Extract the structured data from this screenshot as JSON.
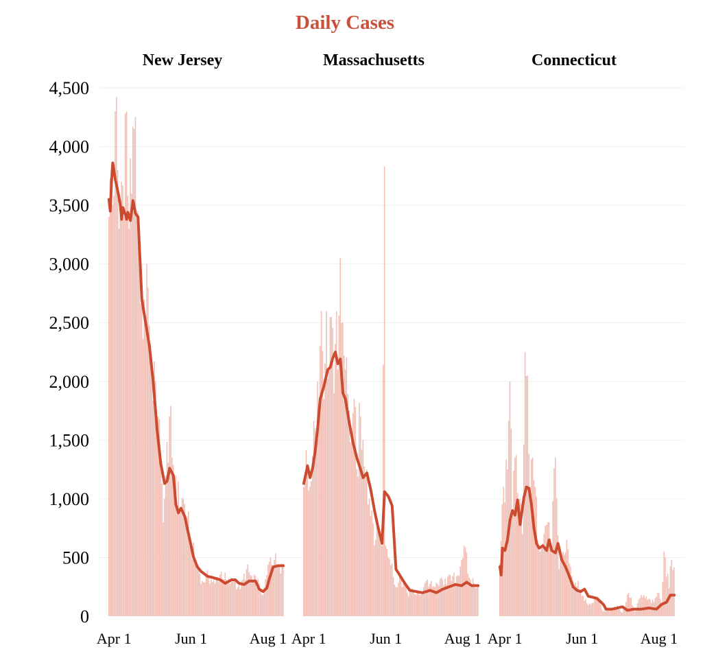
{
  "chart_data": {
    "type": "bar",
    "title": "Daily Cases",
    "colors": {
      "title": "#c9513a",
      "bars": "#f0bfb5",
      "line": "#cc4b30",
      "grid": "#efefef",
      "text": "#000000"
    },
    "ylim": [
      0,
      4500
    ],
    "yticks": [
      0,
      500,
      1000,
      1500,
      2000,
      2500,
      3000,
      3500,
      4000,
      4500
    ],
    "ytick_labels": [
      "0",
      "500",
      "1,000",
      "1,500",
      "2,000",
      "2,500",
      "3,000",
      "3,500",
      "4,000",
      "4,500"
    ],
    "date_range": [
      "2020-03-28",
      "2020-08-13"
    ],
    "xtick_dates": [
      "2020-04-01",
      "2020-06-01",
      "2020-08-01"
    ],
    "xtick_labels": [
      "Apr 1",
      "Jun 1",
      "Aug 1"
    ],
    "grid": "horizontal",
    "panels": [
      {
        "title": "New Jersey",
        "bar_keys": [
          [
            "2020-03-28",
            3400
          ],
          [
            "2020-03-31",
            3500
          ],
          [
            "2020-04-02",
            4300
          ],
          [
            "2020-04-04",
            3800
          ],
          [
            "2020-04-05",
            3300
          ],
          [
            "2020-04-07",
            3700
          ],
          [
            "2020-04-09",
            3400
          ],
          [
            "2020-04-10",
            4280
          ],
          [
            "2020-04-11",
            4300
          ],
          [
            "2020-04-13",
            3300
          ],
          [
            "2020-04-14",
            3900
          ],
          [
            "2020-04-15",
            3600
          ],
          [
            "2020-04-17",
            4150
          ],
          [
            "2020-04-19",
            3400
          ],
          [
            "2020-04-21",
            3200
          ],
          [
            "2020-04-23",
            2700
          ],
          [
            "2020-04-25",
            2700
          ],
          [
            "2020-04-27",
            3000
          ],
          [
            "2020-04-28",
            2800
          ],
          [
            "2020-05-01",
            2200
          ],
          [
            "2020-05-04",
            2000
          ],
          [
            "2020-05-06",
            1700
          ],
          [
            "2020-05-08",
            1350
          ],
          [
            "2020-05-10",
            800
          ],
          [
            "2020-05-12",
            1200
          ],
          [
            "2020-05-15",
            1700
          ],
          [
            "2020-05-17",
            1350
          ],
          [
            "2020-05-20",
            1200
          ],
          [
            "2020-05-23",
            900
          ],
          [
            "2020-05-26",
            1000
          ],
          [
            "2020-05-29",
            850
          ],
          [
            "2020-06-01",
            600
          ],
          [
            "2020-06-04",
            500
          ],
          [
            "2020-06-07",
            400
          ],
          [
            "2020-06-10",
            300
          ],
          [
            "2020-06-15",
            340
          ],
          [
            "2020-06-20",
            280
          ],
          [
            "2020-06-25",
            380
          ],
          [
            "2020-06-30",
            280
          ],
          [
            "2020-07-05",
            300
          ],
          [
            "2020-07-10",
            230
          ],
          [
            "2020-07-15",
            400
          ],
          [
            "2020-07-20",
            310
          ],
          [
            "2020-07-25",
            280
          ],
          [
            "2020-07-28",
            180
          ],
          [
            "2020-07-31",
            350
          ],
          [
            "2020-08-03",
            500
          ],
          [
            "2020-08-06",
            480
          ],
          [
            "2020-08-10",
            440
          ]
        ],
        "line_keys": [
          [
            "2020-03-28",
            3550
          ],
          [
            "2020-03-29",
            3450
          ],
          [
            "2020-03-30",
            3700
          ],
          [
            "2020-03-31",
            3860
          ],
          [
            "2020-04-02",
            3720
          ],
          [
            "2020-04-04",
            3620
          ],
          [
            "2020-04-06",
            3500
          ],
          [
            "2020-04-07",
            3380
          ],
          [
            "2020-04-08",
            3480
          ],
          [
            "2020-04-10",
            3420
          ],
          [
            "2020-04-11",
            3380
          ],
          [
            "2020-04-12",
            3440
          ],
          [
            "2020-04-14",
            3370
          ],
          [
            "2020-04-16",
            3540
          ],
          [
            "2020-04-18",
            3430
          ],
          [
            "2020-04-20",
            3400
          ],
          [
            "2020-04-23",
            2700
          ],
          [
            "2020-04-26",
            2500
          ],
          [
            "2020-04-29",
            2300
          ],
          [
            "2020-05-02",
            2000
          ],
          [
            "2020-05-05",
            1600
          ],
          [
            "2020-05-08",
            1300
          ],
          [
            "2020-05-11",
            1130
          ],
          [
            "2020-05-13",
            1150
          ],
          [
            "2020-05-15",
            1260
          ],
          [
            "2020-05-18",
            1200
          ],
          [
            "2020-05-20",
            950
          ],
          [
            "2020-05-22",
            880
          ],
          [
            "2020-05-24",
            920
          ],
          [
            "2020-05-27",
            850
          ],
          [
            "2020-05-30",
            700
          ],
          [
            "2020-06-03",
            500
          ],
          [
            "2020-06-06",
            420
          ],
          [
            "2020-06-09",
            380
          ],
          [
            "2020-06-14",
            340
          ],
          [
            "2020-06-18",
            330
          ],
          [
            "2020-06-24",
            310
          ],
          [
            "2020-06-28",
            280
          ],
          [
            "2020-07-03",
            310
          ],
          [
            "2020-07-06",
            310
          ],
          [
            "2020-07-09",
            280
          ],
          [
            "2020-07-13",
            270
          ],
          [
            "2020-07-17",
            300
          ],
          [
            "2020-07-22",
            300
          ],
          [
            "2020-07-25",
            230
          ],
          [
            "2020-07-28",
            210
          ],
          [
            "2020-07-31",
            240
          ],
          [
            "2020-08-02",
            320
          ],
          [
            "2020-08-05",
            420
          ],
          [
            "2020-08-09",
            430
          ]
        ]
      },
      {
        "title": "Massachusetts",
        "bar_keys": [
          [
            "2020-03-28",
            1100
          ],
          [
            "2020-03-31",
            1300
          ],
          [
            "2020-04-03",
            1150
          ],
          [
            "2020-04-06",
            1600
          ],
          [
            "2020-04-08",
            2000
          ],
          [
            "2020-04-10",
            2300
          ],
          [
            "2020-04-11",
            2600
          ],
          [
            "2020-04-13",
            1850
          ],
          [
            "2020-04-15",
            2600
          ],
          [
            "2020-04-17",
            2100
          ],
          [
            "2020-04-19",
            2550
          ],
          [
            "2020-04-21",
            1900
          ],
          [
            "2020-04-23",
            2600
          ],
          [
            "2020-04-24",
            2100
          ],
          [
            "2020-04-26",
            3050
          ],
          [
            "2020-04-28",
            2500
          ],
          [
            "2020-04-30",
            2100
          ],
          [
            "2020-05-03",
            1750
          ],
          [
            "2020-05-05",
            1500
          ],
          [
            "2020-05-07",
            1850
          ],
          [
            "2020-05-09",
            1250
          ],
          [
            "2020-05-12",
            1700
          ],
          [
            "2020-05-14",
            1500
          ],
          [
            "2020-05-17",
            1250
          ],
          [
            "2020-05-19",
            1000
          ],
          [
            "2020-05-21",
            900
          ],
          [
            "2020-05-24",
            650
          ],
          [
            "2020-05-27",
            750
          ],
          [
            "2020-05-29",
            600
          ],
          [
            "2020-05-31",
            3830
          ],
          [
            "2020-06-01",
            600
          ],
          [
            "2020-06-03",
            500
          ],
          [
            "2020-06-06",
            450
          ],
          [
            "2020-06-09",
            250
          ],
          [
            "2020-06-13",
            320
          ],
          [
            "2020-06-18",
            200
          ],
          [
            "2020-06-23",
            210
          ],
          [
            "2020-06-28",
            180
          ],
          [
            "2020-07-03",
            300
          ],
          [
            "2020-07-08",
            250
          ],
          [
            "2020-07-13",
            260
          ],
          [
            "2020-07-18",
            320
          ],
          [
            "2020-07-23",
            300
          ],
          [
            "2020-07-28",
            350
          ],
          [
            "2020-08-02",
            600
          ],
          [
            "2020-08-06",
            330
          ],
          [
            "2020-08-10",
            280
          ]
        ],
        "line_keys": [
          [
            "2020-03-28",
            1130
          ],
          [
            "2020-03-31",
            1280
          ],
          [
            "2020-04-02",
            1180
          ],
          [
            "2020-04-04",
            1260
          ],
          [
            "2020-04-06",
            1400
          ],
          [
            "2020-04-08",
            1600
          ],
          [
            "2020-04-10",
            1850
          ],
          [
            "2020-04-13",
            1960
          ],
          [
            "2020-04-16",
            2100
          ],
          [
            "2020-04-18",
            2120
          ],
          [
            "2020-04-20",
            2200
          ],
          [
            "2020-04-22",
            2250
          ],
          [
            "2020-04-24",
            2150
          ],
          [
            "2020-04-26",
            2190
          ],
          [
            "2020-04-28",
            1900
          ],
          [
            "2020-04-30",
            1850
          ],
          [
            "2020-05-03",
            1650
          ],
          [
            "2020-05-06",
            1480
          ],
          [
            "2020-05-09",
            1350
          ],
          [
            "2020-05-12",
            1250
          ],
          [
            "2020-05-14",
            1180
          ],
          [
            "2020-05-17",
            1220
          ],
          [
            "2020-05-20",
            1080
          ],
          [
            "2020-05-23",
            900
          ],
          [
            "2020-05-26",
            750
          ],
          [
            "2020-05-29",
            620
          ],
          [
            "2020-05-31",
            1060
          ],
          [
            "2020-06-03",
            1020
          ],
          [
            "2020-06-06",
            940
          ],
          [
            "2020-06-09",
            400
          ],
          [
            "2020-06-12",
            350
          ],
          [
            "2020-06-16",
            280
          ],
          [
            "2020-06-20",
            220
          ],
          [
            "2020-06-25",
            210
          ],
          [
            "2020-06-30",
            200
          ],
          [
            "2020-07-06",
            220
          ],
          [
            "2020-07-11",
            200
          ],
          [
            "2020-07-16",
            230
          ],
          [
            "2020-07-21",
            250
          ],
          [
            "2020-07-26",
            270
          ],
          [
            "2020-07-31",
            260
          ],
          [
            "2020-08-04",
            290
          ],
          [
            "2020-08-08",
            260
          ]
        ]
      },
      {
        "title": "Connecticut",
        "bar_keys": [
          [
            "2020-03-28",
            450
          ],
          [
            "2020-03-31",
            1100
          ],
          [
            "2020-04-03",
            1250
          ],
          [
            "2020-04-05",
            2000
          ],
          [
            "2020-04-07",
            900
          ],
          [
            "2020-04-09",
            1350
          ],
          [
            "2020-04-11",
            1050
          ],
          [
            "2020-04-13",
            1000
          ],
          [
            "2020-04-15",
            700
          ],
          [
            "2020-04-17",
            2250
          ],
          [
            "2020-04-19",
            2050
          ],
          [
            "2020-04-21",
            1100
          ],
          [
            "2020-04-23",
            1350
          ],
          [
            "2020-04-25",
            1100
          ],
          [
            "2020-04-27",
            650
          ],
          [
            "2020-04-29",
            550
          ],
          [
            "2020-05-02",
            700
          ],
          [
            "2020-05-05",
            800
          ],
          [
            "2020-05-08",
            600
          ],
          [
            "2020-05-11",
            1350
          ],
          [
            "2020-05-14",
            400
          ],
          [
            "2020-05-17",
            550
          ],
          [
            "2020-05-20",
            650
          ],
          [
            "2020-05-25",
            300
          ],
          [
            "2020-05-29",
            300
          ],
          [
            "2020-06-03",
            130
          ],
          [
            "2020-06-08",
            100
          ],
          [
            "2020-06-13",
            170
          ],
          [
            "2020-06-18",
            40
          ],
          [
            "2020-06-23",
            60
          ],
          [
            "2020-06-29",
            90
          ],
          [
            "2020-07-03",
            30
          ],
          [
            "2020-07-08",
            200
          ],
          [
            "2020-07-13",
            40
          ],
          [
            "2020-07-18",
            180
          ],
          [
            "2020-07-23",
            140
          ],
          [
            "2020-07-28",
            120
          ],
          [
            "2020-07-31",
            200
          ],
          [
            "2020-08-03",
            120
          ],
          [
            "2020-08-05",
            550
          ],
          [
            "2020-08-09",
            240
          ],
          [
            "2020-08-11",
            480
          ]
        ],
        "line_keys": [
          [
            "2020-03-28",
            420
          ],
          [
            "2020-03-29",
            350
          ],
          [
            "2020-03-30",
            580
          ],
          [
            "2020-04-01",
            560
          ],
          [
            "2020-04-03",
            650
          ],
          [
            "2020-04-05",
            820
          ],
          [
            "2020-04-07",
            900
          ],
          [
            "2020-04-09",
            860
          ],
          [
            "2020-04-11",
            990
          ],
          [
            "2020-04-13",
            780
          ],
          [
            "2020-04-16",
            1010
          ],
          [
            "2020-04-18",
            1100
          ],
          [
            "2020-04-20",
            1090
          ],
          [
            "2020-04-22",
            950
          ],
          [
            "2020-04-24",
            750
          ],
          [
            "2020-04-26",
            620
          ],
          [
            "2020-04-28",
            580
          ],
          [
            "2020-05-01",
            600
          ],
          [
            "2020-05-04",
            560
          ],
          [
            "2020-05-06",
            650
          ],
          [
            "2020-05-08",
            560
          ],
          [
            "2020-05-11",
            540
          ],
          [
            "2020-05-13",
            620
          ],
          [
            "2020-05-16",
            480
          ],
          [
            "2020-05-19",
            420
          ],
          [
            "2020-05-22",
            340
          ],
          [
            "2020-05-25",
            250
          ],
          [
            "2020-05-28",
            220
          ],
          [
            "2020-05-31",
            210
          ],
          [
            "2020-06-03",
            230
          ],
          [
            "2020-06-06",
            170
          ],
          [
            "2020-06-10",
            160
          ],
          [
            "2020-06-13",
            150
          ],
          [
            "2020-06-18",
            100
          ],
          [
            "2020-06-20",
            60
          ],
          [
            "2020-06-25",
            60
          ],
          [
            "2020-06-29",
            70
          ],
          [
            "2020-07-03",
            80
          ],
          [
            "2020-07-07",
            50
          ],
          [
            "2020-07-12",
            60
          ],
          [
            "2020-07-18",
            60
          ],
          [
            "2020-07-24",
            70
          ],
          [
            "2020-07-30",
            60
          ],
          [
            "2020-08-03",
            100
          ],
          [
            "2020-08-07",
            120
          ],
          [
            "2020-08-10",
            180
          ]
        ]
      }
    ]
  }
}
